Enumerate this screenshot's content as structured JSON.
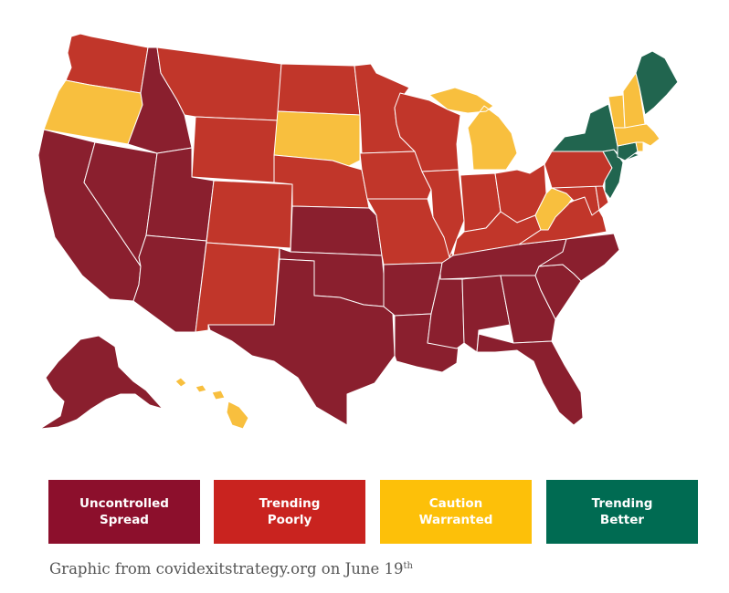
{
  "colors": {
    "uncontrolled": "#8a1f2e",
    "trending_poorly": "#c1362a",
    "caution": "#f8bf3e",
    "better": "#21654f"
  },
  "legend": [
    {
      "line1": "Uncontrolled",
      "line2": "Spread"
    },
    {
      "line1": "Trending",
      "line2": "Poorly"
    },
    {
      "line1": "Caution",
      "line2": "Warranted"
    },
    {
      "line1": "Trending",
      "line2": "Better"
    }
  ],
  "caption": {
    "text": "Graphic from covidexitstrategy.org on June 19",
    "suffix": "th"
  },
  "states": [
    {
      "id": "WA",
      "status": "trending_poorly"
    },
    {
      "id": "OR",
      "status": "caution"
    },
    {
      "id": "CA",
      "status": "uncontrolled"
    },
    {
      "id": "NV",
      "status": "uncontrolled"
    },
    {
      "id": "ID",
      "status": "uncontrolled"
    },
    {
      "id": "MT",
      "status": "trending_poorly"
    },
    {
      "id": "WY",
      "status": "trending_poorly"
    },
    {
      "id": "UT",
      "status": "uncontrolled"
    },
    {
      "id": "AZ",
      "status": "uncontrolled"
    },
    {
      "id": "CO",
      "status": "trending_poorly"
    },
    {
      "id": "NM",
      "status": "trending_poorly"
    },
    {
      "id": "ND",
      "status": "trending_poorly"
    },
    {
      "id": "SD",
      "status": "caution"
    },
    {
      "id": "NE",
      "status": "trending_poorly"
    },
    {
      "id": "KS",
      "status": "uncontrolled"
    },
    {
      "id": "OK",
      "status": "uncontrolled"
    },
    {
      "id": "TX",
      "status": "uncontrolled"
    },
    {
      "id": "MN",
      "status": "trending_poorly"
    },
    {
      "id": "IA",
      "status": "trending_poorly"
    },
    {
      "id": "MO",
      "status": "trending_poorly"
    },
    {
      "id": "AR",
      "status": "uncontrolled"
    },
    {
      "id": "LA",
      "status": "uncontrolled"
    },
    {
      "id": "WI",
      "status": "trending_poorly"
    },
    {
      "id": "IL",
      "status": "trending_poorly"
    },
    {
      "id": "MI",
      "status": "caution"
    },
    {
      "id": "IN",
      "status": "trending_poorly"
    },
    {
      "id": "OH",
      "status": "trending_poorly"
    },
    {
      "id": "KY",
      "status": "trending_poorly"
    },
    {
      "id": "TN",
      "status": "uncontrolled"
    },
    {
      "id": "MS",
      "status": "uncontrolled"
    },
    {
      "id": "AL",
      "status": "uncontrolled"
    },
    {
      "id": "GA",
      "status": "uncontrolled"
    },
    {
      "id": "FL",
      "status": "uncontrolled"
    },
    {
      "id": "SC",
      "status": "uncontrolled"
    },
    {
      "id": "NC",
      "status": "uncontrolled"
    },
    {
      "id": "VA",
      "status": "trending_poorly"
    },
    {
      "id": "WV",
      "status": "caution"
    },
    {
      "id": "MD",
      "status": "trending_poorly"
    },
    {
      "id": "DE",
      "status": "trending_poorly"
    },
    {
      "id": "PA",
      "status": "trending_poorly"
    },
    {
      "id": "NJ",
      "status": "better"
    },
    {
      "id": "NY",
      "status": "better"
    },
    {
      "id": "CT",
      "status": "better"
    },
    {
      "id": "RI",
      "status": "caution"
    },
    {
      "id": "MA",
      "status": "caution"
    },
    {
      "id": "VT",
      "status": "caution"
    },
    {
      "id": "NH",
      "status": "caution"
    },
    {
      "id": "ME",
      "status": "better"
    },
    {
      "id": "AK",
      "status": "uncontrolled"
    },
    {
      "id": "HI",
      "status": "caution"
    }
  ]
}
